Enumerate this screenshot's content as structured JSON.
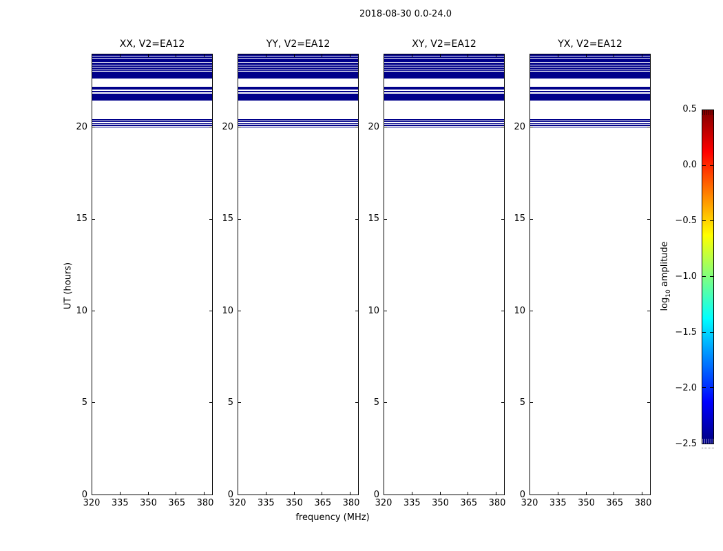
{
  "chart_data": {
    "type": "heatmap",
    "figure_title": "2018-08-30 0.0-24.0",
    "panels": [
      {
        "title": "XX, V2=EA12"
      },
      {
        "title": "YY, V2=EA12"
      },
      {
        "title": "XY, V2=EA12"
      },
      {
        "title": "YX, V2=EA12"
      }
    ],
    "xlabel": "frequency (MHz)",
    "ylabel": "UT (hours)",
    "x_axis": {
      "min": 320,
      "max": 384,
      "tick_values": [
        320,
        335,
        350,
        365,
        380
      ]
    },
    "y_axis": {
      "min": 0,
      "max": 24,
      "tick_values": [
        0,
        5,
        10,
        15,
        20
      ]
    },
    "colorbar": {
      "label": "log10 amplitude",
      "label_prefix": "log",
      "label_sub": "10",
      "label_suffix": " amplitude",
      "colormap": "jet",
      "min": -2.5,
      "max": 0.5,
      "tick_values": [
        0.5,
        0.0,
        -0.5,
        -1.0,
        -1.5,
        -2.0,
        -2.5
      ],
      "tick_labels": [
        "0.5",
        "0.0",
        "−0.5",
        "−1.0",
        "−1.5",
        "−2.0",
        "−2.5"
      ]
    },
    "band_color": "#00008a",
    "band_value_log10_amplitude": -2.5,
    "bands_note": "Horizontal navy emission bands spanning the full frequency range, identical in all four polarization panels; plane is empty (white) below UT 20.",
    "bands_ut": [
      [
        23.93,
        23.99
      ],
      [
        23.81,
        23.9
      ],
      [
        23.59,
        23.76
      ],
      [
        23.44,
        23.54
      ],
      [
        23.32,
        23.4
      ],
      [
        23.19,
        23.27
      ],
      [
        23.09,
        23.14
      ],
      [
        22.68,
        23.05
      ],
      [
        22.07,
        22.25
      ],
      [
        21.92,
        22.02
      ],
      [
        21.47,
        21.87
      ],
      [
        20.4,
        20.46
      ],
      [
        20.31,
        20.36
      ],
      [
        20.21,
        20.26
      ],
      [
        20.11,
        20.16
      ],
      [
        20.01,
        20.06
      ]
    ]
  }
}
